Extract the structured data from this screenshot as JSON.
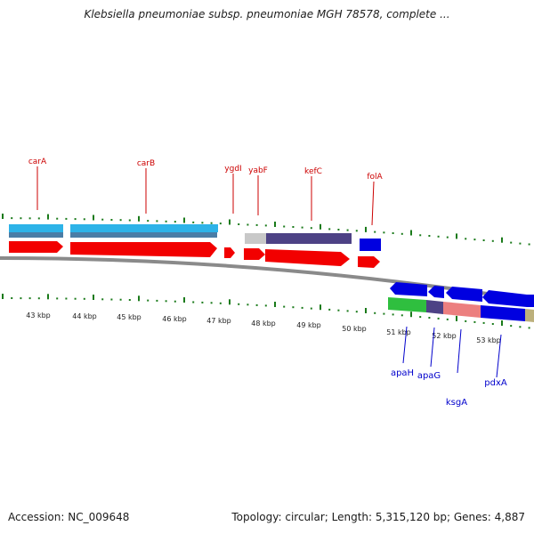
{
  "title": "Klebsiella pneumoniae subsp. pneumoniae MGH 78578, complete ...",
  "footer": {
    "accession": "Accession: NC_009648",
    "topology": "Topology: circular; Length: 5,315,120 bp; Genes: 4,887"
  },
  "colors": {
    "forward_label": "#cc0000",
    "reverse_label": "#0000cc",
    "tick": "#1a7a1a",
    "backbone": "#8a8a8a"
  },
  "kbp_labels": [
    "43 kbp",
    "44 kbp",
    "45 kbp",
    "46 kbp",
    "47 kbp",
    "48 kbp",
    "49 kbp",
    "50 kbp",
    "51 kbp",
    "52 kbp",
    "53 kbp"
  ],
  "forward_genes": [
    "carA",
    "carB",
    "ygdI",
    "yabF",
    "kefC",
    "folA"
  ],
  "reverse_genes": [
    "apaH",
    "apaG",
    "ksgA",
    "pdxA"
  ]
}
